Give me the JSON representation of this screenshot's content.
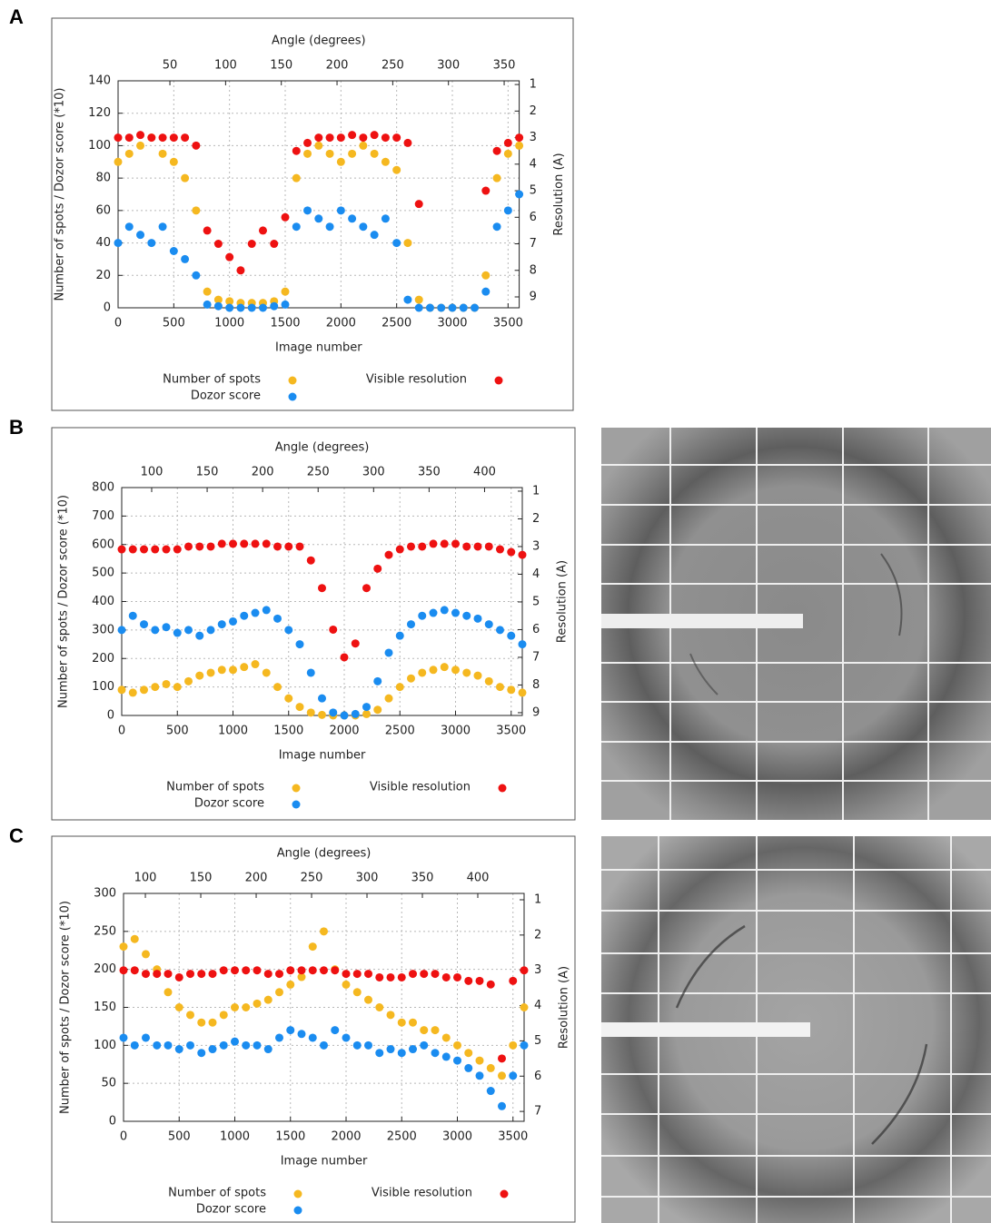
{
  "panel_labels": [
    "A",
    "B",
    "C"
  ],
  "chart_data": [
    {
      "type": "scatter",
      "x_label": "Image number",
      "x2_label": "Angle (degrees)",
      "y_label": "Number of spots / Dozor score (*10)",
      "y2_label": "Resolution (A)",
      "xlim": [
        0,
        3600
      ],
      "xticks": [
        0,
        500,
        1000,
        1500,
        2000,
        2500,
        3000,
        3500
      ],
      "x2lim": [
        3.5,
        363.5
      ],
      "x2ticks": [
        50,
        100,
        150,
        200,
        250,
        300,
        350
      ],
      "ylim": [
        0,
        140
      ],
      "yticks": [
        0,
        20,
        40,
        60,
        80,
        100,
        120,
        140
      ],
      "y2lim": [
        9.41,
        0.86
      ],
      "y2ticks": [
        1,
        2,
        3,
        4,
        5,
        6,
        7,
        8,
        9
      ],
      "grid": true,
      "x": [
        0,
        100,
        200,
        300,
        400,
        500,
        600,
        700,
        800,
        900,
        1000,
        1100,
        1200,
        1300,
        1400,
        1500,
        1600,
        1700,
        1800,
        1900,
        2000,
        2100,
        2200,
        2300,
        2400,
        2500,
        2600,
        2700,
        2800,
        2900,
        3000,
        3100,
        3200,
        3300,
        3400,
        3500,
        3600
      ],
      "series": [
        {
          "name": "Number of spots",
          "color": "#f5b820",
          "values": [
            90,
            95,
            100,
            105,
            95,
            90,
            80,
            60,
            10,
            5,
            4,
            3,
            3,
            3,
            4,
            10,
            80,
            95,
            100,
            95,
            90,
            95,
            100,
            95,
            90,
            85,
            40,
            5,
            0,
            0,
            0,
            0,
            0,
            20,
            80,
            95,
            100
          ]
        },
        {
          "name": "Dozor score",
          "color": "#1a8cf0",
          "values": [
            40,
            50,
            45,
            40,
            50,
            35,
            30,
            20,
            2,
            1,
            0,
            0,
            0,
            0,
            1,
            2,
            50,
            60,
            55,
            50,
            60,
            55,
            50,
            45,
            55,
            40,
            5,
            0,
            0,
            0,
            0,
            0,
            0,
            10,
            50,
            60,
            70
          ]
        },
        {
          "name": "Visible resolution",
          "color": "#ee1111",
          "axis": "y2",
          "values": [
            3,
            3,
            2.9,
            3,
            3,
            3,
            3,
            3.3,
            6.5,
            7,
            7.5,
            8,
            7,
            6.5,
            7,
            6,
            3.5,
            3.2,
            3,
            3,
            3,
            2.9,
            3,
            2.9,
            3,
            3,
            3.2,
            5.5,
            null,
            null,
            null,
            null,
            null,
            5,
            3.5,
            3.2,
            3
          ]
        }
      ]
    },
    {
      "type": "scatter",
      "x_label": "Image number",
      "x2_label": "Angle (degrees)",
      "y_label": "Number of spots / Dozor score (*10)",
      "y2_label": "Resolution (A)",
      "xlim": [
        0,
        3600
      ],
      "xticks": [
        0,
        500,
        1000,
        1500,
        2000,
        2500,
        3000,
        3500
      ],
      "x2lim": [
        73,
        434
      ],
      "x2ticks": [
        100,
        150,
        200,
        250,
        300,
        350,
        400
      ],
      "ylim": [
        0,
        800
      ],
      "yticks": [
        0,
        100,
        200,
        300,
        400,
        500,
        600,
        700,
        800
      ],
      "y2lim": [
        9.1,
        0.87
      ],
      "y2ticks": [
        1,
        2,
        3,
        4,
        5,
        6,
        7,
        8,
        9
      ],
      "grid": true,
      "x": [
        0,
        100,
        200,
        300,
        400,
        500,
        600,
        700,
        800,
        900,
        1000,
        1100,
        1200,
        1300,
        1400,
        1500,
        1600,
        1700,
        1800,
        1900,
        2000,
        2100,
        2200,
        2300,
        2400,
        2500,
        2600,
        2700,
        2800,
        2900,
        3000,
        3100,
        3200,
        3300,
        3400,
        3500,
        3600
      ],
      "series": [
        {
          "name": "Number of spots",
          "color": "#f5b820",
          "values": [
            90,
            80,
            90,
            100,
            110,
            100,
            120,
            140,
            150,
            160,
            160,
            170,
            180,
            150,
            100,
            60,
            30,
            10,
            2,
            0,
            0,
            0,
            5,
            20,
            60,
            100,
            130,
            150,
            160,
            170,
            160,
            150,
            140,
            120,
            100,
            90,
            80
          ]
        },
        {
          "name": "Dozor score",
          "color": "#1a8cf0",
          "values": [
            300,
            350,
            320,
            300,
            310,
            290,
            300,
            280,
            300,
            320,
            330,
            350,
            360,
            370,
            340,
            300,
            250,
            150,
            60,
            10,
            0,
            5,
            30,
            120,
            220,
            280,
            320,
            350,
            360,
            370,
            360,
            350,
            340,
            320,
            300,
            280,
            250
          ]
        },
        {
          "name": "Visible resolution",
          "color": "#ee1111",
          "axis": "y2",
          "values": [
            3.1,
            3.1,
            3.1,
            3.1,
            3.1,
            3.1,
            3.0,
            3.0,
            3.0,
            2.9,
            2.9,
            2.9,
            2.9,
            2.9,
            3.0,
            3.0,
            3.0,
            3.5,
            4.5,
            6,
            7,
            6.5,
            4.5,
            3.8,
            3.3,
            3.1,
            3.0,
            3.0,
            2.9,
            2.9,
            2.9,
            3.0,
            3.0,
            3.0,
            3.1,
            3.2,
            3.3
          ]
        }
      ]
    },
    {
      "type": "scatter",
      "x_label": "Image number",
      "x2_label": "Angle (degrees)",
      "y_label": "Number of spots / Dozor score (*10)",
      "y2_label": "Resolution (A)",
      "xlim": [
        0,
        3600
      ],
      "xticks": [
        0,
        500,
        1000,
        1500,
        2000,
        2500,
        3000,
        3500
      ],
      "x2lim": [
        80.3,
        441.8
      ],
      "x2ticks": [
        100,
        150,
        200,
        250,
        300,
        350,
        400
      ],
      "ylim": [
        0,
        300
      ],
      "yticks": [
        0,
        50,
        100,
        150,
        200,
        250,
        300
      ],
      "y2lim": [
        7.28,
        0.82
      ],
      "y2ticks": [
        1,
        2,
        3,
        4,
        5,
        6,
        7
      ],
      "grid": true,
      "x": [
        0,
        100,
        200,
        300,
        400,
        500,
        600,
        700,
        800,
        900,
        1000,
        1100,
        1200,
        1300,
        1400,
        1500,
        1600,
        1700,
        1800,
        1900,
        2000,
        2100,
        2200,
        2300,
        2400,
        2500,
        2600,
        2700,
        2800,
        2900,
        3000,
        3100,
        3200,
        3300,
        3400,
        3500,
        3600
      ],
      "series": [
        {
          "name": "Number of spots",
          "color": "#f5b820",
          "values": [
            230,
            240,
            220,
            200,
            170,
            150,
            140,
            130,
            130,
            140,
            150,
            150,
            155,
            160,
            170,
            180,
            190,
            230,
            250,
            200,
            180,
            170,
            160,
            150,
            140,
            130,
            130,
            120,
            120,
            110,
            100,
            90,
            80,
            70,
            60,
            100,
            150
          ]
        },
        {
          "name": "Dozor score",
          "color": "#1a8cf0",
          "values": [
            110,
            100,
            110,
            100,
            100,
            95,
            100,
            90,
            95,
            100,
            105,
            100,
            100,
            95,
            110,
            120,
            115,
            110,
            100,
            120,
            110,
            100,
            100,
            90,
            95,
            90,
            95,
            100,
            90,
            85,
            80,
            70,
            60,
            40,
            20,
            60,
            100
          ]
        },
        {
          "name": "Visible resolution",
          "color": "#ee1111",
          "axis": "y2",
          "values": [
            3.0,
            3.0,
            3.1,
            3.1,
            3.1,
            3.2,
            3.1,
            3.1,
            3.1,
            3.0,
            3.0,
            3.0,
            3.0,
            3.1,
            3.1,
            3.0,
            3.0,
            3.0,
            3.0,
            3.0,
            3.1,
            3.1,
            3.1,
            3.2,
            3.2,
            3.2,
            3.1,
            3.1,
            3.1,
            3.2,
            3.2,
            3.3,
            3.3,
            3.4,
            5.5,
            3.3,
            3.0
          ]
        }
      ]
    }
  ]
}
